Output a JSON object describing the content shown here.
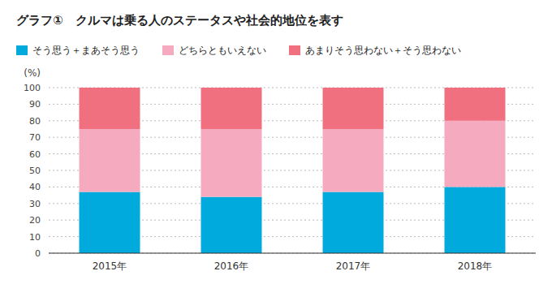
{
  "chart_data": {
    "type": "bar",
    "stacked": true,
    "title": "グラフ①　クルマは乗る人のステータスや社会的地位を表す",
    "y_label": "(%)",
    "categories": [
      "2015年",
      "2016年",
      "2017年",
      "2018年"
    ],
    "series": [
      {
        "name": "そう思う＋まあそう思う",
        "color": "#00AADD",
        "values": [
          37,
          34,
          37,
          40
        ]
      },
      {
        "name": "どちらともいえない",
        "color": "#F5AABF",
        "values": [
          38,
          41,
          38,
          40
        ]
      },
      {
        "name": "あまりそう思わない＋そう思わない",
        "color": "#F07080",
        "values": [
          25,
          25,
          25,
          20
        ]
      }
    ],
    "ylim": [
      0,
      100
    ],
    "yticks": [
      0,
      10,
      20,
      30,
      40,
      50,
      60,
      70,
      80,
      90,
      100
    ],
    "grid": true,
    "legend": "top"
  }
}
